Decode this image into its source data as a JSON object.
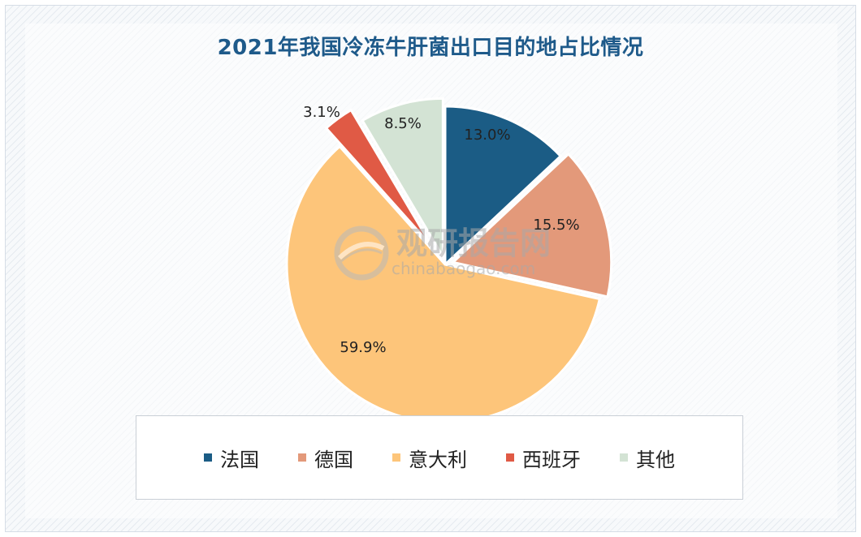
{
  "chart_data": {
    "type": "pie",
    "title": "2021年我国冷冻牛肝菌出口目的地占比情况",
    "slices": [
      {
        "name": "法国",
        "value": 13.0,
        "label": "13.0%",
        "color": "#1b5c85"
      },
      {
        "name": "德国",
        "value": 15.5,
        "label": "15.5%",
        "color": "#e3997a"
      },
      {
        "name": "意大利",
        "value": 59.9,
        "label": "59.9%",
        "color": "#fdc57a"
      },
      {
        "name": "西班牙",
        "value": 3.1,
        "label": "3.1%",
        "color": "#e05a45"
      },
      {
        "name": "其他",
        "value": 8.5,
        "label": "8.5%",
        "color": "#d3e3d4"
      }
    ],
    "legend_position": "bottom"
  },
  "watermark": {
    "text_cn": "观研报告网",
    "text_en": "chinabaogao.com"
  }
}
